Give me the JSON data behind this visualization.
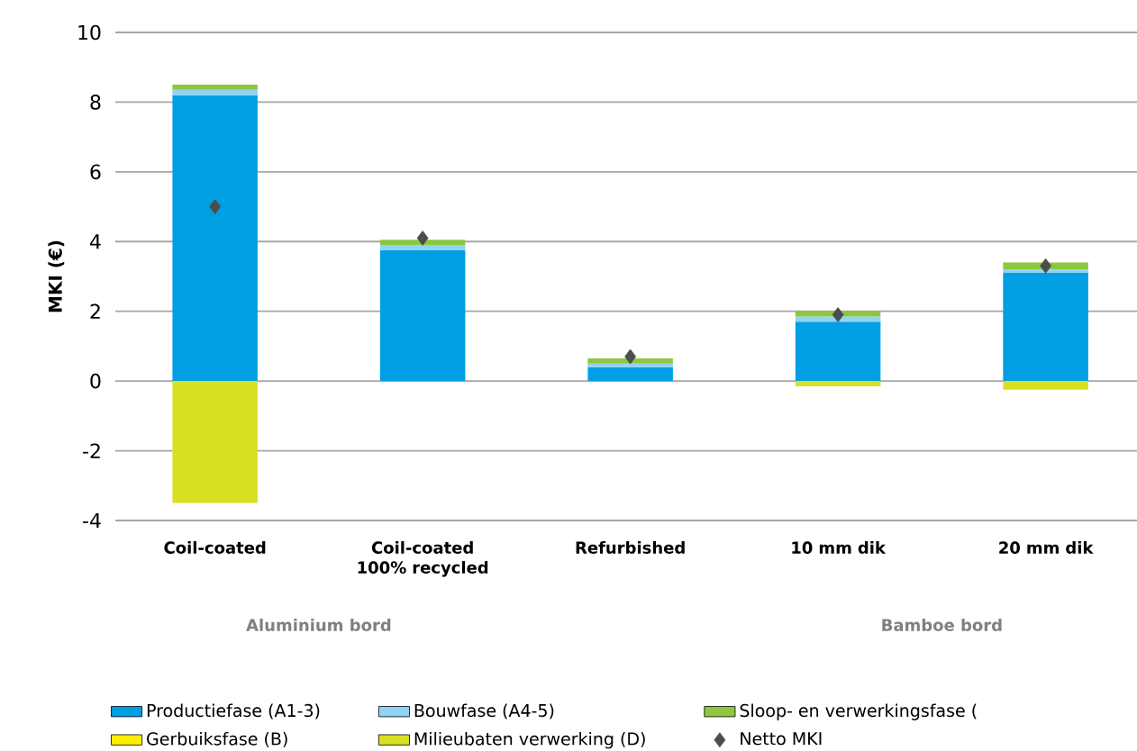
{
  "chart_data": {
    "type": "bar",
    "stacked": true,
    "ylabel": "MKI (€)",
    "categories": [
      "Coil-coated",
      "Coil-coated 100% recycled",
      "Refurbished",
      "10 mm dik",
      "20 mm dik"
    ],
    "series": [
      {
        "name": "Productiefase (A1-3)",
        "color": "#009fe3",
        "values": [
          8.2,
          3.75,
          0.4,
          1.7,
          3.1
        ]
      },
      {
        "name": "Bouwfase (A4-5)",
        "color": "#8fd3f5",
        "values": [
          0.15,
          0.15,
          0.1,
          0.15,
          0.1
        ]
      },
      {
        "name": "Sloop- en verwerkingsfase (",
        "color": "#8dc63f",
        "values": [
          0.15,
          0.15,
          0.15,
          0.15,
          0.2
        ]
      },
      {
        "name": "Gerbuiksfase (B)",
        "color": "#ffed00",
        "values": [
          0,
          0,
          0,
          0,
          0
        ]
      },
      {
        "name": "Milieubaten verwerking (D)",
        "color": "#d9e021",
        "values": [
          -3.5,
          0,
          0,
          -0.15,
          -0.25
        ]
      },
      {
        "name": "Netto MKI",
        "type": "scatter",
        "marker": "diamond",
        "color": "#4d4d4d",
        "values": [
          5.0,
          4.1,
          0.7,
          1.9,
          3.3
        ]
      }
    ],
    "ylim": [
      -4,
      10
    ],
    "yticks": [
      -4,
      -2,
      0,
      2,
      4,
      6,
      8,
      10
    ],
    "grid": "y",
    "legend": "bottom",
    "annotations": [
      "Aluminium bord",
      "Bamboe bord"
    ]
  }
}
